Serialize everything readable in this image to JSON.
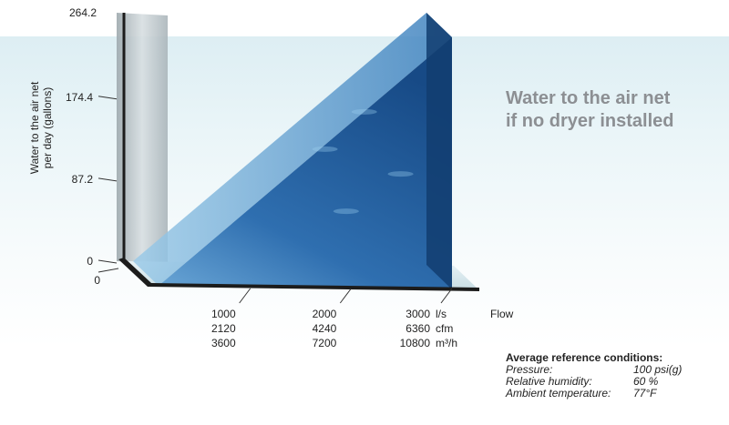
{
  "headline": {
    "line1": "Water to the air net",
    "line2": "if no dryer installed"
  },
  "reference_conditions": {
    "title": "Average reference conditions:",
    "rows": [
      {
        "label": "Pressure:",
        "value": "100 psi(g)"
      },
      {
        "label": "Relative humidity:",
        "value": "60 %"
      },
      {
        "label": "Ambient temperature:",
        "value": "77°F"
      }
    ]
  },
  "colors": {
    "water_dark": "#174a86",
    "water_mid": "#2f6fb0",
    "water_light": "#7fb4dd",
    "back_wall": "#b9c3c8",
    "axis_bar": "#1c1c1c",
    "headline_gray": "#8c8f93"
  },
  "chart_data": {
    "type": "area",
    "title": "",
    "ylabel_line1": "Water to the air net",
    "ylabel_line2": "per day (gallons)",
    "xlabel": "Flow",
    "y_ticks": [
      "0",
      "87.2",
      "174.4",
      "264.2"
    ],
    "y_tick_values": [
      0,
      87.2,
      174.4,
      264.2
    ],
    "ylim": [
      0,
      264.2
    ],
    "x_zero_label": "0",
    "x_ticks": [
      {
        "l_s": "1000",
        "cfm": "2120",
        "m3h": "3600"
      },
      {
        "l_s": "2000",
        "cfm": "4240",
        "m3h": "7200"
      },
      {
        "l_s": "3000",
        "cfm": "6360",
        "m3h": "10800"
      }
    ],
    "x_units": [
      "l/s",
      "cfm",
      "m³/h"
    ],
    "x_values_l_s": [
      0,
      1000,
      2000,
      3000
    ],
    "xlim": [
      0,
      3000
    ],
    "series": [
      {
        "x": [
          0,
          3000
        ],
        "y": [
          0,
          264.2
        ]
      }
    ],
    "grid": false
  }
}
